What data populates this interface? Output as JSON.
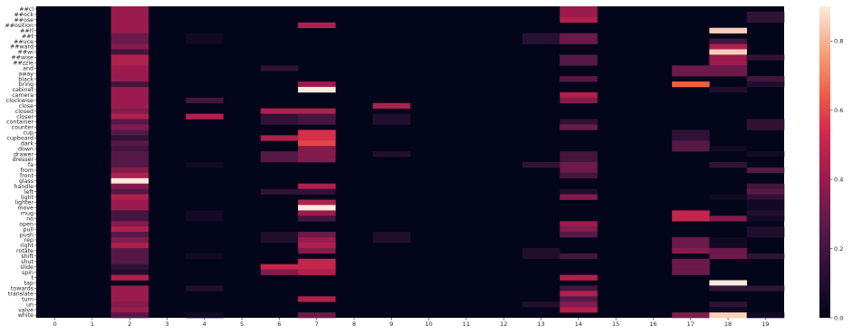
{
  "chart_data": {
    "type": "heatmap",
    "title": "",
    "xlabel": "",
    "ylabel": "",
    "x_ticks": [
      "0",
      "1",
      "2",
      "3",
      "4",
      "5",
      "6",
      "7",
      "8",
      "9",
      "10",
      "11",
      "12",
      "13",
      "14",
      "15",
      "16",
      "17",
      "18",
      "19"
    ],
    "y_ticks": [
      "##cl",
      "##ock",
      "##ose",
      "##osition",
      "##rl",
      "##t",
      "##uce",
      "##ward",
      "##wi",
      "##wise",
      "##zzle",
      "and",
      "away",
      "black",
      "bring",
      "cabinet",
      "camera",
      "clockwise",
      "close",
      "closed",
      "closer",
      "container",
      "counter",
      "cup",
      "cupboard",
      "dark",
      "down",
      "drawer",
      "dresser",
      "fa",
      "from",
      "front",
      "glass",
      "handle",
      "left",
      "light",
      "lighter",
      "move",
      "mug",
      "no",
      "open",
      "pull",
      "push",
      "rep",
      "right",
      "rotate",
      "shift",
      "shut",
      "slide",
      "spin",
      "t",
      "tap",
      "towards",
      "translate",
      "turn",
      "un",
      "valve",
      "white"
    ],
    "colorbar": {
      "min": 0.0,
      "max": 0.9,
      "ticks": [
        "0.0",
        "0.2",
        "0.4",
        "0.6",
        "0.8"
      ],
      "tick_values": [
        0.0,
        0.2,
        0.4,
        0.6,
        0.8
      ],
      "colormap": "rocket"
    },
    "grid": false,
    "values_by_row": [
      [
        [
          2,
          0.4
        ],
        [
          14,
          0.4
        ]
      ],
      [
        [
          2,
          0.4
        ],
        [
          14,
          0.4
        ],
        [
          19,
          0.15
        ]
      ],
      [
        [
          2,
          0.4
        ],
        [
          14,
          0.45
        ],
        [
          19,
          0.15
        ]
      ],
      [
        [
          2,
          0.4
        ],
        [
          7,
          0.45
        ]
      ],
      [
        [
          2,
          0.4
        ],
        [
          18,
          0.85
        ]
      ],
      [
        [
          2,
          0.3
        ],
        [
          4,
          0.05
        ],
        [
          13,
          0.12
        ],
        [
          14,
          0.3
        ]
      ],
      [
        [
          2,
          0.3
        ],
        [
          4,
          0.05
        ],
        [
          13,
          0.12
        ],
        [
          14,
          0.3
        ],
        [
          18,
          0.2
        ]
      ],
      [
        [
          2,
          0.35
        ],
        [
          18,
          0.45
        ]
      ],
      [
        [
          2,
          0.2
        ],
        [
          18,
          0.85
        ]
      ],
      [
        [
          2,
          0.45
        ],
        [
          14,
          0.25
        ],
        [
          18,
          0.4
        ],
        [
          19,
          0.15
        ]
      ],
      [
        [
          2,
          0.45
        ],
        [
          14,
          0.25
        ],
        [
          18,
          0.4
        ]
      ],
      [
        [
          2,
          0.4
        ],
        [
          6,
          0.15
        ],
        [
          17,
          0.3
        ],
        [
          18,
          0.3
        ]
      ],
      [
        [
          2,
          0.4
        ],
        [
          17,
          0.3
        ],
        [
          18,
          0.3
        ]
      ],
      [
        [
          2,
          0.4
        ],
        [
          14,
          0.25
        ],
        [
          19,
          0.2
        ]
      ],
      [
        [
          2,
          0.2
        ],
        [
          7,
          0.4
        ],
        [
          17,
          0.65
        ],
        [
          19,
          0.1
        ]
      ],
      [
        [
          2,
          0.4
        ],
        [
          7,
          0.95
        ],
        [
          18,
          0.1
        ]
      ],
      [
        [
          2,
          0.4
        ],
        [
          14,
          0.45
        ]
      ],
      [
        [
          2,
          0.4
        ],
        [
          4,
          0.2
        ],
        [
          14,
          0.35
        ]
      ],
      [
        [
          2,
          0.4
        ],
        [
          9,
          0.45
        ]
      ],
      [
        [
          2,
          0.35
        ],
        [
          6,
          0.45
        ],
        [
          7,
          0.45
        ]
      ],
      [
        [
          2,
          0.45
        ],
        [
          4,
          0.45
        ],
        [
          6,
          0.15
        ],
        [
          7,
          0.2
        ],
        [
          9,
          0.1
        ]
      ],
      [
        [
          2,
          0.25
        ],
        [
          6,
          0.15
        ],
        [
          7,
          0.2
        ],
        [
          9,
          0.1
        ],
        [
          14,
          0.15
        ],
        [
          19,
          0.15
        ]
      ],
      [
        [
          2,
          0.35
        ],
        [
          14,
          0.3
        ],
        [
          19,
          0.15
        ]
      ],
      [
        [
          2,
          0.25
        ],
        [
          7,
          0.55
        ],
        [
          17,
          0.15
        ]
      ],
      [
        [
          2,
          0.15
        ],
        [
          6,
          0.45
        ],
        [
          7,
          0.55
        ],
        [
          17,
          0.15
        ]
      ],
      [
        [
          2,
          0.25
        ],
        [
          7,
          0.6
        ],
        [
          17,
          0.25
        ]
      ],
      [
        [
          2,
          0.2
        ],
        [
          7,
          0.35
        ],
        [
          17,
          0.25
        ],
        [
          18,
          0.05
        ]
      ],
      [
        [
          2,
          0.25
        ],
        [
          6,
          0.25
        ],
        [
          7,
          0.35
        ],
        [
          9,
          0.1
        ],
        [
          14,
          0.2
        ],
        [
          19,
          0.05
        ]
      ],
      [
        [
          2,
          0.25
        ],
        [
          6,
          0.25
        ],
        [
          7,
          0.35
        ],
        [
          14,
          0.2
        ]
      ],
      [
        [
          2,
          0.25
        ],
        [
          4,
          0.05
        ],
        [
          13,
          0.15
        ],
        [
          14,
          0.3
        ],
        [
          18,
          0.15
        ]
      ],
      [
        [
          2,
          0.35
        ],
        [
          14,
          0.3
        ],
        [
          19,
          0.25
        ]
      ],
      [
        [
          2,
          0.45
        ],
        [
          14,
          0.2
        ]
      ],
      [
        [
          2,
          0.95
        ]
      ],
      [
        [
          2,
          0.35
        ],
        [
          7,
          0.45
        ],
        [
          19,
          0.2
        ]
      ],
      [
        [
          2,
          0.25
        ],
        [
          6,
          0.15
        ],
        [
          7,
          0.15
        ],
        [
          14,
          0.1
        ],
        [
          19,
          0.25
        ]
      ],
      [
        [
          2,
          0.45
        ],
        [
          14,
          0.35
        ],
        [
          18,
          0.05
        ],
        [
          19,
          0.15
        ]
      ],
      [
        [
          2,
          0.4
        ],
        [
          7,
          0.45
        ],
        [
          19,
          0.05
        ]
      ],
      [
        [
          2,
          0.4
        ],
        [
          7,
          0.95
        ],
        [
          19,
          0.05
        ]
      ],
      [
        [
          2,
          0.2
        ],
        [
          4,
          0.05
        ],
        [
          7,
          0.4
        ],
        [
          17,
          0.5
        ],
        [
          19,
          0.1
        ]
      ],
      [
        [
          2,
          0.2
        ],
        [
          4,
          0.05
        ],
        [
          7,
          0.2
        ],
        [
          17,
          0.5
        ],
        [
          18,
          0.35
        ],
        [
          19,
          0.05
        ]
      ],
      [
        [
          2,
          0.35
        ],
        [
          14,
          0.4
        ]
      ],
      [
        [
          2,
          0.45
        ],
        [
          14,
          0.35
        ],
        [
          19,
          0.1
        ]
      ],
      [
        [
          2,
          0.25
        ],
        [
          6,
          0.1
        ],
        [
          7,
          0.3
        ],
        [
          9,
          0.1
        ],
        [
          14,
          0.25
        ],
        [
          19,
          0.1
        ]
      ],
      [
        [
          2,
          0.35
        ],
        [
          6,
          0.1
        ],
        [
          7,
          0.4
        ],
        [
          9,
          0.1
        ],
        [
          17,
          0.3
        ],
        [
          18,
          0.05
        ]
      ],
      [
        [
          2,
          0.45
        ],
        [
          7,
          0.45
        ],
        [
          17,
          0.3
        ],
        [
          18,
          0.05
        ]
      ],
      [
        [
          2,
          0.25
        ],
        [
          7,
          0.35
        ],
        [
          13,
          0.1
        ],
        [
          17,
          0.35
        ],
        [
          18,
          0.3
        ]
      ],
      [
        [
          2,
          0.25
        ],
        [
          4,
          0.05
        ],
        [
          13,
          0.1
        ],
        [
          14,
          0.2
        ],
        [
          18,
          0.3
        ],
        [
          19,
          0.15
        ]
      ],
      [
        [
          2,
          0.25
        ],
        [
          7,
          0.5
        ],
        [
          17,
          0.3
        ]
      ],
      [
        [
          2,
          0.15
        ],
        [
          6,
          0.5
        ],
        [
          7,
          0.5
        ],
        [
          17,
          0.3
        ]
      ],
      [
        [
          2,
          0.1
        ],
        [
          6,
          0.35
        ],
        [
          7,
          0.45
        ],
        [
          17,
          0.3
        ]
      ],
      [
        [
          2,
          0.45
        ],
        [
          14,
          0.45
        ]
      ],
      [
        [
          18,
          0.95
        ]
      ],
      [
        [
          2,
          0.4
        ],
        [
          4,
          0.1
        ],
        [
          14,
          0.2
        ],
        [
          18,
          0.15
        ],
        [
          19,
          0.15
        ]
      ],
      [
        [
          2,
          0.4
        ],
        [
          14,
          0.45
        ]
      ],
      [
        [
          2,
          0.4
        ],
        [
          7,
          0.45
        ],
        [
          14,
          0.25
        ]
      ],
      [
        [
          2,
          0.35
        ],
        [
          13,
          0.1
        ],
        [
          14,
          0.35
        ],
        [
          18,
          0.15
        ]
      ],
      [
        [
          2,
          0.4
        ],
        [
          14,
          0.45
        ],
        [
          18,
          0.05
        ]
      ],
      [
        [
          2,
          0.25
        ],
        [
          4,
          0.05
        ],
        [
          7,
          0.3
        ],
        [
          17,
          0.35
        ],
        [
          18,
          0.85
        ],
        [
          19,
          0.05
        ]
      ]
    ]
  }
}
